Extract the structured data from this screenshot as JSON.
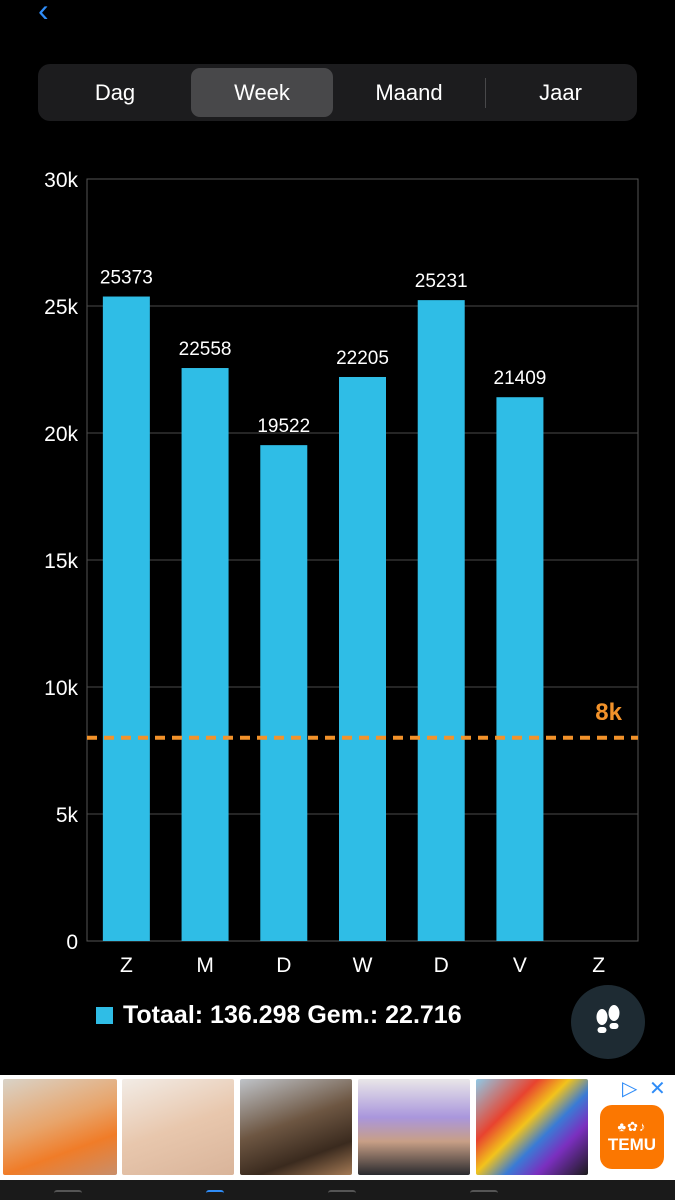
{
  "nav": {
    "back_icon": "chevron-left-icon"
  },
  "segments": [
    {
      "label": "Dag",
      "active": false
    },
    {
      "label": "Week",
      "active": true
    },
    {
      "label": "Maand",
      "active": false
    },
    {
      "label": "Jaar",
      "active": false
    }
  ],
  "chart_data": {
    "type": "bar",
    "categories": [
      "Z",
      "M",
      "D",
      "W",
      "D",
      "V",
      "Z"
    ],
    "values": [
      25373,
      22558,
      19522,
      22205,
      25231,
      21409,
      null
    ],
    "value_labels": [
      "25373",
      "22558",
      "19522",
      "22205",
      "25231",
      "21409",
      ""
    ],
    "y_ticks": [
      0,
      5000,
      10000,
      15000,
      20000,
      25000,
      30000
    ],
    "y_tick_labels": [
      "0",
      "5k",
      "10k",
      "15k",
      "20k",
      "25k",
      "30k"
    ],
    "ylim": [
      0,
      30000
    ],
    "grid": true,
    "bar_color": "#2fbde6",
    "goal_line": {
      "value": 8000,
      "label": "8k",
      "color": "#f2922a",
      "style": "dashed"
    },
    "title": "",
    "xlabel": "",
    "ylabel": ""
  },
  "legend": {
    "text": "Totaal: 136.298 Gem.: 22.716",
    "swatch_color": "#2fbde6"
  },
  "fab": {
    "icon": "footsteps-icon"
  },
  "ad": {
    "brand": "TEMU",
    "adchoices_icon": "adchoices-icon",
    "close_icon": "close-icon",
    "products": [
      "orange-halter-top",
      "beige-bra",
      "long-hair-wig",
      "lavender-tube-top",
      "striped-swimsuit"
    ]
  }
}
